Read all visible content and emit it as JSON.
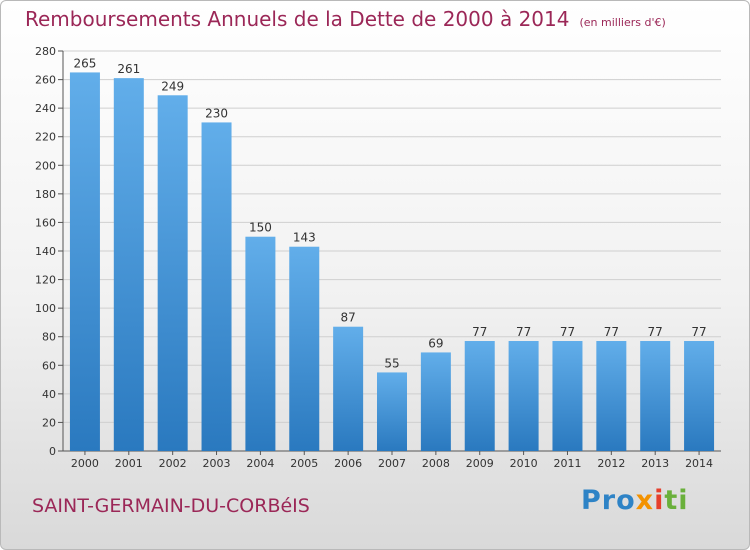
{
  "title": "Remboursements Annuels de la Dette de 2000 à 2014",
  "unit": "(en milliers d'€)",
  "commune": "SAINT-GERMAIN-DU-CORBéIS",
  "logo": {
    "p1": "Pro",
    "p2": "x",
    "p3": "i",
    "p4": "ti"
  },
  "colors": {
    "bar_light": "#62aeea",
    "bar_dark": "#2a79bf",
    "title": "#9b2757",
    "grid": "#cfcfcf"
  },
  "chart_data": {
    "type": "bar",
    "categories": [
      "2000",
      "2001",
      "2002",
      "2003",
      "2004",
      "2005",
      "2006",
      "2007",
      "2008",
      "2009",
      "2010",
      "2011",
      "2012",
      "2013",
      "2014"
    ],
    "values": [
      265,
      261,
      249,
      230,
      150,
      143,
      87,
      55,
      69,
      77,
      77,
      77,
      77,
      77,
      77
    ],
    "ylim": [
      0,
      280
    ],
    "ytick_step": 20,
    "grid": true,
    "data_labels": true
  }
}
